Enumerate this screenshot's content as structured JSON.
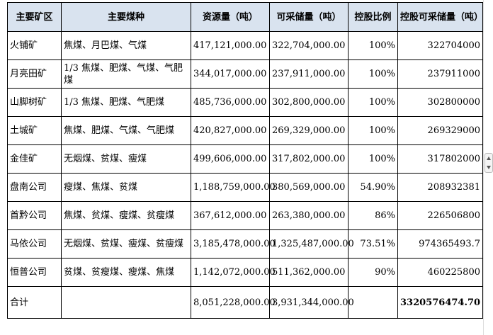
{
  "table": {
    "headers": [
      "主要矿区",
      "主要煤种",
      "资源量（吨）",
      "可采储量（吨）",
      "控股比例",
      "控股可采储量（吨）"
    ],
    "rows": [
      {
        "region": "火铺矿",
        "coal": "焦煤、月巴煤、气煤",
        "resource": "417,121,000.00",
        "reserve": "322,704,000.00",
        "ratio": "100%",
        "held": "322704000"
      },
      {
        "region": "月亮田矿",
        "coal": "1/3 焦煤、肥煤、气煤、气肥煤",
        "resource": "344,017,000.00",
        "reserve": "237,911,000.00",
        "ratio": "100%",
        "held": "237911000"
      },
      {
        "region": "山脚树矿",
        "coal": "1/3 焦煤、肥煤、气肥煤",
        "resource": "485,736,000.00",
        "reserve": "302,800,000.00",
        "ratio": "100%",
        "held": "302800000"
      },
      {
        "region": "土城矿",
        "coal": "焦煤、肥煤、气煤、气肥煤",
        "resource": "420,827,000.00",
        "reserve": "269,329,000.00",
        "ratio": "100%",
        "held": "269329000"
      },
      {
        "region": "金佳矿",
        "coal": "无烟煤、贫煤、瘦煤",
        "resource": "499,606,000.00",
        "reserve": "317,802,000.00",
        "ratio": "100%",
        "held": "317802000"
      },
      {
        "region": "盘南公司",
        "coal": "瘦煤、焦煤、贫煤",
        "resource": "1,188,759,000.00",
        "reserve": "380,569,000.00",
        "ratio": "54.90%",
        "held": "208932381"
      },
      {
        "region": "首黔公司",
        "coal": "焦煤、贫煤、瘦煤、贫瘦煤",
        "resource": "367,612,000.00",
        "reserve": "263,380,000.00",
        "ratio": "86%",
        "held": "226506800"
      },
      {
        "region": "马依公司",
        "coal": "无烟煤、贫煤、瘦煤、贫瘦煤",
        "resource": "3,185,478,000.00",
        "reserve": "1,325,487,000.00",
        "ratio": "73.51%",
        "held": "974365493.7"
      },
      {
        "region": "恒普公司",
        "coal": "贫煤、贫瘦煤、瘦煤、焦煤",
        "resource": "1,142,072,000.00",
        "reserve": "511,362,000.00",
        "ratio": "90%",
        "held": "460225800"
      }
    ],
    "total": {
      "label": "合计",
      "coal": "",
      "resource": "8,051,228,000.00",
      "reserve": "3,931,344,000.00",
      "ratio": "",
      "held": "3320576474.70"
    }
  }
}
